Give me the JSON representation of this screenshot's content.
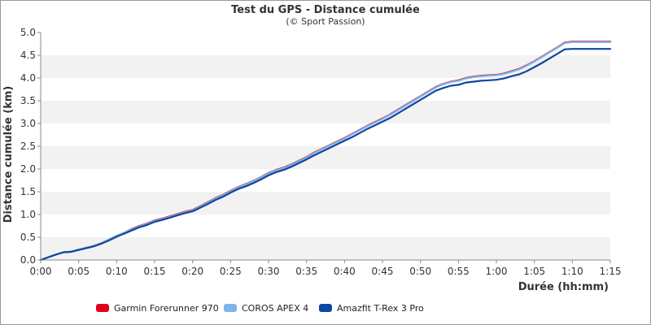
{
  "chart_data": {
    "type": "line",
    "title": "Test du GPS - Distance cumulée",
    "subtitle": "(© Sport Passion)",
    "xlabel": "Durée (hh:mm)",
    "ylabel": "Distance cumulée (km)",
    "xlim": [
      0,
      75
    ],
    "ylim": [
      0,
      5.0
    ],
    "x_unit": "minutes",
    "x_ticks": [
      "0:00",
      "0:05",
      "0:10",
      "0:15",
      "0:20",
      "0:25",
      "0:30",
      "0:35",
      "0:40",
      "0:45",
      "0:50",
      "0:55",
      "1:00",
      "1:05",
      "1:10",
      "1:15"
    ],
    "y_ticks": [
      "0.0",
      "0.5",
      "1.0",
      "1.5",
      "2.0",
      "2.5",
      "3.0",
      "3.5",
      "4.0",
      "4.5",
      "5.0"
    ],
    "grid": "horizontal alternating bands",
    "legend_position": "bottom-left",
    "series": [
      {
        "name": "Garmin Forerunner 970",
        "color": "#e0001b",
        "points": [
          [
            0,
            0
          ],
          [
            1,
            0.06
          ],
          [
            2,
            0.12
          ],
          [
            3,
            0.17
          ],
          [
            4,
            0.18
          ],
          [
            5,
            0.23
          ],
          [
            6,
            0.27
          ],
          [
            7,
            0.31
          ],
          [
            8,
            0.37
          ],
          [
            9,
            0.45
          ],
          [
            10,
            0.53
          ],
          [
            11,
            0.6
          ],
          [
            12,
            0.68
          ],
          [
            13,
            0.75
          ],
          [
            14,
            0.8
          ],
          [
            15,
            0.87
          ],
          [
            16,
            0.91
          ],
          [
            17,
            0.96
          ],
          [
            18,
            1.01
          ],
          [
            19,
            1.06
          ],
          [
            20,
            1.1
          ],
          [
            21,
            1.18
          ],
          [
            22,
            1.27
          ],
          [
            23,
            1.36
          ],
          [
            24,
            1.43
          ],
          [
            25,
            1.52
          ],
          [
            26,
            1.6
          ],
          [
            27,
            1.67
          ],
          [
            28,
            1.74
          ],
          [
            29,
            1.82
          ],
          [
            30,
            1.91
          ],
          [
            31,
            1.98
          ],
          [
            32,
            2.03
          ],
          [
            33,
            2.1
          ],
          [
            34,
            2.18
          ],
          [
            35,
            2.26
          ],
          [
            36,
            2.36
          ],
          [
            37,
            2.44
          ],
          [
            38,
            2.52
          ],
          [
            39,
            2.6
          ],
          [
            40,
            2.68
          ],
          [
            41,
            2.77
          ],
          [
            42,
            2.86
          ],
          [
            43,
            2.95
          ],
          [
            44,
            3.03
          ],
          [
            45,
            3.11
          ],
          [
            46,
            3.2
          ],
          [
            47,
            3.3
          ],
          [
            48,
            3.4
          ],
          [
            49,
            3.5
          ],
          [
            50,
            3.6
          ],
          [
            51,
            3.7
          ],
          [
            52,
            3.8
          ],
          [
            53,
            3.87
          ],
          [
            54,
            3.92
          ],
          [
            55,
            3.95
          ],
          [
            56,
            4.0
          ],
          [
            57,
            4.03
          ],
          [
            58,
            4.05
          ],
          [
            59,
            4.06
          ],
          [
            60,
            4.07
          ],
          [
            61,
            4.1
          ],
          [
            62,
            4.15
          ],
          [
            63,
            4.2
          ],
          [
            64,
            4.28
          ],
          [
            65,
            4.37
          ],
          [
            66,
            4.47
          ],
          [
            67,
            4.57
          ],
          [
            68,
            4.67
          ],
          [
            69,
            4.78
          ],
          [
            70,
            4.8
          ],
          [
            75,
            4.8
          ]
        ]
      },
      {
        "name": "COROS APEX 4",
        "color": "#7cb5ec",
        "points": [
          [
            0,
            0
          ],
          [
            1,
            0.06
          ],
          [
            2,
            0.12
          ],
          [
            3,
            0.17
          ],
          [
            4,
            0.18
          ],
          [
            5,
            0.23
          ],
          [
            6,
            0.27
          ],
          [
            7,
            0.31
          ],
          [
            8,
            0.37
          ],
          [
            9,
            0.45
          ],
          [
            10,
            0.53
          ],
          [
            11,
            0.6
          ],
          [
            12,
            0.67
          ],
          [
            13,
            0.74
          ],
          [
            14,
            0.79
          ],
          [
            15,
            0.86
          ],
          [
            16,
            0.9
          ],
          [
            17,
            0.95
          ],
          [
            18,
            1.0
          ],
          [
            19,
            1.05
          ],
          [
            20,
            1.09
          ],
          [
            21,
            1.17
          ],
          [
            22,
            1.26
          ],
          [
            23,
            1.35
          ],
          [
            24,
            1.42
          ],
          [
            25,
            1.51
          ],
          [
            26,
            1.59
          ],
          [
            27,
            1.66
          ],
          [
            28,
            1.73
          ],
          [
            29,
            1.81
          ],
          [
            30,
            1.9
          ],
          [
            31,
            1.97
          ],
          [
            32,
            2.02
          ],
          [
            33,
            2.09
          ],
          [
            34,
            2.17
          ],
          [
            35,
            2.25
          ],
          [
            36,
            2.35
          ],
          [
            37,
            2.43
          ],
          [
            38,
            2.51
          ],
          [
            39,
            2.59
          ],
          [
            40,
            2.67
          ],
          [
            41,
            2.76
          ],
          [
            42,
            2.85
          ],
          [
            43,
            2.94
          ],
          [
            44,
            3.02
          ],
          [
            45,
            3.1
          ],
          [
            46,
            3.19
          ],
          [
            47,
            3.29
          ],
          [
            48,
            3.39
          ],
          [
            49,
            3.49
          ],
          [
            50,
            3.59
          ],
          [
            51,
            3.69
          ],
          [
            52,
            3.79
          ],
          [
            53,
            3.86
          ],
          [
            54,
            3.91
          ],
          [
            55,
            3.94
          ],
          [
            56,
            3.99
          ],
          [
            57,
            4.02
          ],
          [
            58,
            4.04
          ],
          [
            59,
            4.05
          ],
          [
            60,
            4.06
          ],
          [
            61,
            4.09
          ],
          [
            62,
            4.14
          ],
          [
            63,
            4.19
          ],
          [
            64,
            4.27
          ],
          [
            65,
            4.36
          ],
          [
            66,
            4.46
          ],
          [
            67,
            4.56
          ],
          [
            68,
            4.66
          ],
          [
            69,
            4.77
          ],
          [
            70,
            4.79
          ],
          [
            75,
            4.79
          ]
        ]
      },
      {
        "name": "Amazfit T-Rex 3 Pro",
        "color": "#0d47a1",
        "points": [
          [
            0,
            0
          ],
          [
            1,
            0.06
          ],
          [
            2,
            0.12
          ],
          [
            3,
            0.17
          ],
          [
            4,
            0.18
          ],
          [
            5,
            0.22
          ],
          [
            6,
            0.26
          ],
          [
            7,
            0.3
          ],
          [
            8,
            0.36
          ],
          [
            9,
            0.43
          ],
          [
            10,
            0.51
          ],
          [
            11,
            0.58
          ],
          [
            12,
            0.65
          ],
          [
            13,
            0.72
          ],
          [
            14,
            0.77
          ],
          [
            15,
            0.84
          ],
          [
            16,
            0.88
          ],
          [
            17,
            0.93
          ],
          [
            18,
            0.98
          ],
          [
            19,
            1.03
          ],
          [
            20,
            1.07
          ],
          [
            21,
            1.15
          ],
          [
            22,
            1.23
          ],
          [
            23,
            1.32
          ],
          [
            24,
            1.39
          ],
          [
            25,
            1.48
          ],
          [
            26,
            1.56
          ],
          [
            27,
            1.62
          ],
          [
            28,
            1.69
          ],
          [
            29,
            1.77
          ],
          [
            30,
            1.86
          ],
          [
            31,
            1.93
          ],
          [
            32,
            1.98
          ],
          [
            33,
            2.05
          ],
          [
            34,
            2.13
          ],
          [
            35,
            2.21
          ],
          [
            36,
            2.3
          ],
          [
            37,
            2.38
          ],
          [
            38,
            2.46
          ],
          [
            39,
            2.54
          ],
          [
            40,
            2.62
          ],
          [
            41,
            2.7
          ],
          [
            42,
            2.79
          ],
          [
            43,
            2.88
          ],
          [
            44,
            2.96
          ],
          [
            45,
            3.04
          ],
          [
            46,
            3.12
          ],
          [
            47,
            3.22
          ],
          [
            48,
            3.32
          ],
          [
            49,
            3.42
          ],
          [
            50,
            3.52
          ],
          [
            51,
            3.62
          ],
          [
            52,
            3.72
          ],
          [
            53,
            3.78
          ],
          [
            54,
            3.83
          ],
          [
            55,
            3.85
          ],
          [
            56,
            3.9
          ],
          [
            57,
            3.92
          ],
          [
            58,
            3.94
          ],
          [
            59,
            3.95
          ],
          [
            60,
            3.96
          ],
          [
            61,
            3.99
          ],
          [
            62,
            4.04
          ],
          [
            63,
            4.08
          ],
          [
            64,
            4.15
          ],
          [
            65,
            4.24
          ],
          [
            66,
            4.33
          ],
          [
            67,
            4.43
          ],
          [
            68,
            4.53
          ],
          [
            69,
            4.63
          ],
          [
            70,
            4.64
          ],
          [
            75,
            4.64
          ]
        ]
      }
    ]
  }
}
